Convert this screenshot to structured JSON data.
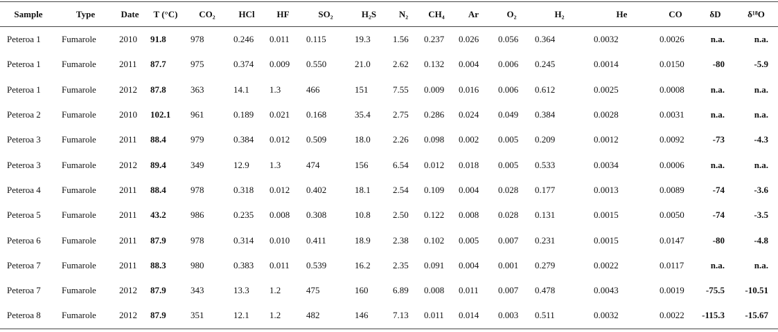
{
  "table": {
    "header": [
      "Sample",
      "Type",
      "Date",
      "T (°C)",
      "CO₂",
      "HCl",
      "HF",
      "SO₂",
      "H₂S",
      "N₂",
      "CH₄",
      "Ar",
      "O₂",
      "H₂",
      "He",
      "CO",
      "δD",
      "δ¹⁸O"
    ],
    "rows": [
      [
        "Peteroa 1",
        "Fumarole",
        "2010",
        "91.8",
        "978",
        "0.246",
        "0.011",
        "0.115",
        "19.3",
        "1.56",
        "0.237",
        "0.026",
        "0.056",
        "0.364",
        "0.0032",
        "0.0026",
        "n.a.",
        "n.a."
      ],
      [
        "Peteroa 1",
        "Fumarole",
        "2011",
        "87.7",
        "975",
        "0.374",
        "0.009",
        "0.550",
        "21.0",
        "2.62",
        "0.132",
        "0.004",
        "0.006",
        "0.245",
        "0.0014",
        "0.0150",
        "-80",
        "-5.9"
      ],
      [
        "Peteroa 1",
        "Fumarole",
        "2012",
        "87.8",
        "363",
        "14.1",
        "1.3",
        "466",
        "151",
        "7.55",
        "0.009",
        "0.016",
        "0.006",
        "0.612",
        "0.0025",
        "0.0008",
        "n.a.",
        "n.a."
      ],
      [
        "Peteroa 2",
        "Fumarole",
        "2010",
        "102.1",
        "961",
        "0.189",
        "0.021",
        "0.168",
        "35.4",
        "2.75",
        "0.286",
        "0.024",
        "0.049",
        "0.384",
        "0.0028",
        "0.0031",
        "n.a.",
        "n.a."
      ],
      [
        "Peteroa 3",
        "Fumarole",
        "2011",
        "88.4",
        "979",
        "0.384",
        "0.012",
        "0.509",
        "18.0",
        "2.26",
        "0.098",
        "0.002",
        "0.005",
        "0.209",
        "0.0012",
        "0.0092",
        "-73",
        "-4.3"
      ],
      [
        "Peteroa 3",
        "Fumarole",
        "2012",
        "89.4",
        "349",
        "12.9",
        "1.3",
        "474",
        "156",
        "6.54",
        "0.012",
        "0.018",
        "0.005",
        "0.533",
        "0.0034",
        "0.0006",
        "n.a.",
        "n.a."
      ],
      [
        "Peteroa 4",
        "Fumarole",
        "2011",
        "88.4",
        "978",
        "0.318",
        "0.012",
        "0.402",
        "18.1",
        "2.54",
        "0.109",
        "0.004",
        "0.028",
        "0.177",
        "0.0013",
        "0.0089",
        "-74",
        "-3.6"
      ],
      [
        "Peteroa 5",
        "Fumarole",
        "2011",
        "43.2",
        "986",
        "0.235",
        "0.008",
        "0.308",
        "10.8",
        "2.50",
        "0.122",
        "0.008",
        "0.028",
        "0.131",
        "0.0015",
        "0.0050",
        "-74",
        "-3.5"
      ],
      [
        "Peteroa 6",
        "Fumarole",
        "2011",
        "87.9",
        "978",
        "0.314",
        "0.010",
        "0.411",
        "18.9",
        "2.38",
        "0.102",
        "0.005",
        "0.007",
        "0.231",
        "0.0015",
        "0.0147",
        "-80",
        "-4.8"
      ],
      [
        "Peteroa 7",
        "Fumarole",
        "2011",
        "88.3",
        "980",
        "0.383",
        "0.011",
        "0.539",
        "16.2",
        "2.35",
        "0.091",
        "0.004",
        "0.001",
        "0.279",
        "0.0022",
        "0.0117",
        "n.a.",
        "n.a."
      ],
      [
        "Peteroa 7",
        "Fumarole",
        "2012",
        "87.9",
        "343",
        "13.3",
        "1.2",
        "475",
        "160",
        "6.89",
        "0.008",
        "0.011",
        "0.007",
        "0.478",
        "0.0043",
        "0.0019",
        "-75.5",
        "-10.51"
      ],
      [
        "Peteroa 8",
        "Fumarole",
        "2012",
        "87.9",
        "351",
        "12.1",
        "1.2",
        "482",
        "146",
        "7.13",
        "0.011",
        "0.014",
        "0.003",
        "0.511",
        "0.0032",
        "0.0022",
        "-115.3",
        "-15.67"
      ]
    ]
  }
}
